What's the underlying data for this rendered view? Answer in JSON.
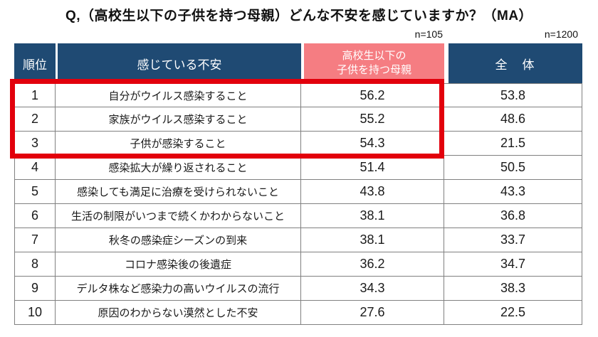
{
  "title": "Q,（高校生以下の子供を持つ母親）どんな不安を感じていますか？（MA）",
  "sample_sizes": {
    "mothers": "n=105",
    "total": "n=1200"
  },
  "table": {
    "headers": {
      "rank": "順位",
      "anxiety": "感じている不安",
      "mothers_line1": "高校生以下の",
      "mothers_line2": "子供を持つ母親",
      "total": "全　体"
    },
    "rows": [
      {
        "rank": "1",
        "anxiety": "自分がウイルス感染すること",
        "mothers": "56.2",
        "total": "53.8"
      },
      {
        "rank": "2",
        "anxiety": "家族がウイルス感染すること",
        "mothers": "55.2",
        "total": "48.6"
      },
      {
        "rank": "3",
        "anxiety": "子供が感染すること",
        "mothers": "54.3",
        "total": "21.5"
      },
      {
        "rank": "4",
        "anxiety": "感染拡大が繰り返されること",
        "mothers": "51.4",
        "total": "50.5"
      },
      {
        "rank": "5",
        "anxiety": "感染しても満足に治療を受けられないこと",
        "mothers": "43.8",
        "total": "43.3"
      },
      {
        "rank": "6",
        "anxiety": "生活の制限がいつまで続くかわからないこと",
        "mothers": "38.1",
        "total": "36.8"
      },
      {
        "rank": "7",
        "anxiety": "秋冬の感染症シーズンの到来",
        "mothers": "38.1",
        "total": "33.7"
      },
      {
        "rank": "8",
        "anxiety": "コロナ感染後の後遺症",
        "mothers": "36.2",
        "total": "34.7"
      },
      {
        "rank": "9",
        "anxiety": "デルタ株など感染力の高いウイルスの流行",
        "mothers": "34.3",
        "total": "38.3"
      },
      {
        "rank": "10",
        "anxiety": "原因のわからない漠然とした不安",
        "mothers": "27.6",
        "total": "22.5"
      }
    ],
    "highlighted_ranks": [
      1,
      2,
      3
    ]
  },
  "colors": {
    "header_blue": "#1f4a73",
    "header_pink": "#f57d82",
    "highlight_red": "#e2000c",
    "grid_gray": "#808080"
  },
  "chart_data": {
    "type": "table",
    "title": "Q,（高校生以下の子供を持つ母親）どんな不安を感じていますか？（MA）",
    "columns": [
      "順位",
      "感じている不安",
      "高校生以下の子供を持つ母親 (n=105)",
      "全体 (n=1200)"
    ],
    "categories": [
      "自分がウイルス感染すること",
      "家族がウイルス感染すること",
      "子供が感染すること",
      "感染拡大が繰り返されること",
      "感染しても満足に治療を受けられないこと",
      "生活の制限がいつまで続くかわからないこと",
      "秋冬の感染症シーズンの到来",
      "コロナ感染後の後遺症",
      "デルタ株など感染力の高いウイルスの流行",
      "原因のわからない漠然とした不安"
    ],
    "series": [
      {
        "name": "高校生以下の子供を持つ母親",
        "n": 105,
        "values": [
          56.2,
          55.2,
          54.3,
          51.4,
          43.8,
          38.1,
          38.1,
          36.2,
          34.3,
          27.6
        ]
      },
      {
        "name": "全体",
        "n": 1200,
        "values": [
          53.8,
          48.6,
          21.5,
          50.5,
          43.3,
          36.8,
          33.7,
          34.7,
          38.3,
          22.5
        ]
      }
    ],
    "highlighted_ranks": [
      1,
      2,
      3
    ],
    "unit": "%"
  }
}
